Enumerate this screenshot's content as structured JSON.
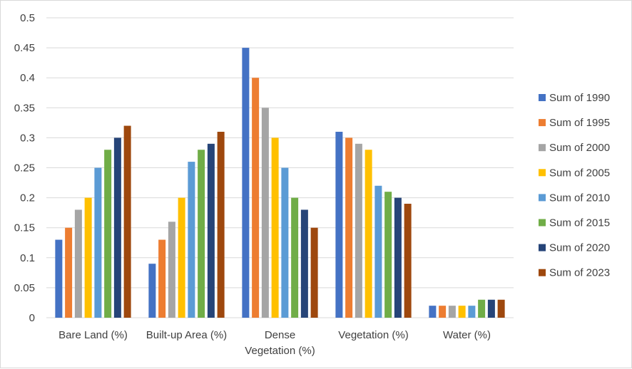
{
  "chart_data": {
    "type": "bar",
    "categories": [
      [
        "Bare Land (%)"
      ],
      [
        "Built-up Area (%)"
      ],
      [
        "Dense",
        "Vegetation (%)"
      ],
      [
        "Vegetation (%)"
      ],
      [
        "Water (%)"
      ]
    ],
    "series": [
      {
        "name": "Sum of 1990",
        "color": "#4472c4",
        "values": [
          0.13,
          0.09,
          0.45,
          0.31,
          0.02
        ]
      },
      {
        "name": "Sum of 1995",
        "color": "#ed7d31",
        "values": [
          0.15,
          0.13,
          0.4,
          0.3,
          0.02
        ]
      },
      {
        "name": "Sum of 2000",
        "color": "#a5a5a5",
        "values": [
          0.18,
          0.16,
          0.35,
          0.29,
          0.02
        ]
      },
      {
        "name": "Sum of 2005",
        "color": "#ffc000",
        "values": [
          0.2,
          0.2,
          0.3,
          0.28,
          0.02
        ]
      },
      {
        "name": "Sum of 2010",
        "color": "#5b9bd5",
        "values": [
          0.25,
          0.26,
          0.25,
          0.22,
          0.02
        ]
      },
      {
        "name": "Sum of 2015",
        "color": "#70ad47",
        "values": [
          0.28,
          0.28,
          0.2,
          0.21,
          0.03
        ]
      },
      {
        "name": "Sum of 2020",
        "color": "#264478",
        "values": [
          0.3,
          0.29,
          0.18,
          0.2,
          0.03
        ]
      },
      {
        "name": "Sum of 2023",
        "color": "#9e480e",
        "values": [
          0.32,
          0.31,
          0.15,
          0.19,
          0.03
        ]
      }
    ],
    "ylim": [
      0,
      0.5
    ],
    "yticks": [
      "0",
      "0.05",
      "0.1",
      "0.15",
      "0.2",
      "0.25",
      "0.3",
      "0.35",
      "0.4",
      "0.45",
      "0.5"
    ],
    "grid": true,
    "legend": "right"
  }
}
